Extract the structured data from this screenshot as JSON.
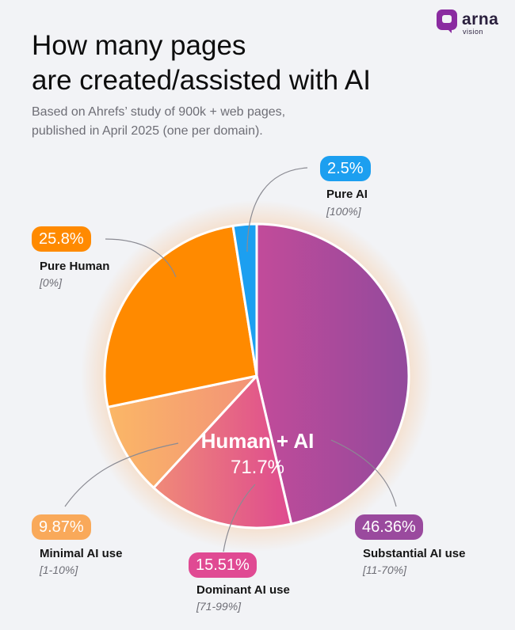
{
  "brand": {
    "name": "arna",
    "sub": "vision"
  },
  "title_lines": [
    "How many pages",
    "are created/assisted with AI"
  ],
  "subtitle_lines": [
    "Based on Ahrefs’ study of 900k + web pages,",
    "published in April 2025 (one per domain)."
  ],
  "center": {
    "label": "Human + AI",
    "value": "71.7%"
  },
  "colors": {
    "pure_ai": "#1c9ff0",
    "pure_human": "#ff8a00",
    "minimal": "#f9a95a",
    "dominant": "#e04a93",
    "substantial": "#9a4a9e",
    "bg": "#f2f3f6"
  },
  "chart_data": {
    "type": "pie",
    "title": "How many pages are created/assisted with AI",
    "start": "12 o'clock, clockwise",
    "slices": [
      {
        "name": "Substantial AI use",
        "range": "[11-70%]",
        "value": 46.36,
        "label": "46.36%"
      },
      {
        "name": "Dominant AI use",
        "range": "[71-99%]",
        "value": 15.51,
        "label": "15.51%"
      },
      {
        "name": "Minimal AI use",
        "range": "[1-10%]",
        "value": 9.87,
        "label": "9.87%"
      },
      {
        "name": "Pure Human",
        "range": "[0%]",
        "value": 25.8,
        "label": "25.8%"
      },
      {
        "name": "Pure AI",
        "range": "[100%]",
        "value": 2.5,
        "label": "2.5%"
      }
    ],
    "group": {
      "label": "Human + AI",
      "value": "71.7%",
      "members": [
        "Substantial AI use",
        "Dominant AI use",
        "Minimal AI use"
      ]
    }
  }
}
